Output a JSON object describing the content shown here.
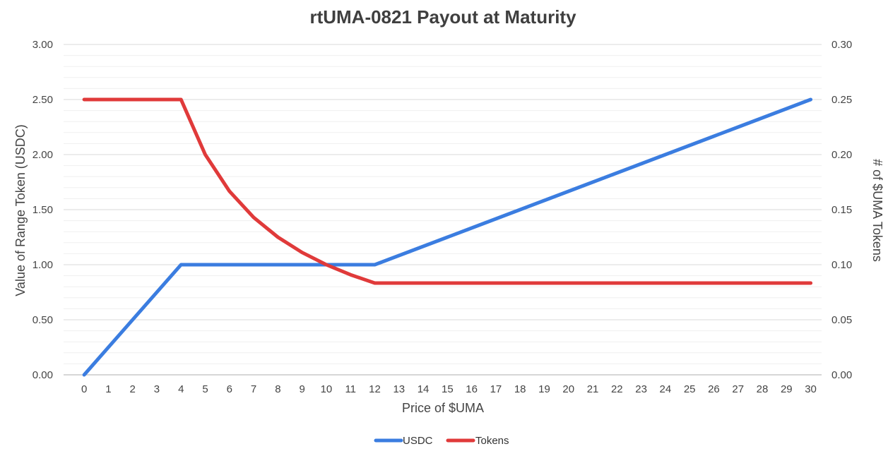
{
  "chart_data": {
    "type": "line",
    "title": "rtUMA-0821 Payout at Maturity",
    "xlabel": "Price of $UMA",
    "ylabel": "Value of Range Token (USDC)",
    "y2label": "# of $UMA Tokens",
    "x": [
      0,
      1,
      2,
      3,
      4,
      5,
      6,
      7,
      8,
      9,
      10,
      11,
      12,
      13,
      14,
      15,
      16,
      17,
      18,
      19,
      20,
      21,
      22,
      23,
      24,
      25,
      26,
      27,
      28,
      29,
      30
    ],
    "ylim": [
      0,
      3
    ],
    "y2lim": [
      0,
      0.3
    ],
    "yticks": [
      "0.00",
      "0.50",
      "1.00",
      "1.50",
      "2.00",
      "2.50",
      "3.00"
    ],
    "y2ticks": [
      "0.00",
      "0.05",
      "0.10",
      "0.15",
      "0.20",
      "0.25",
      "0.30"
    ],
    "grid": true,
    "legend_position": "bottom",
    "series": [
      {
        "name": "USDC",
        "axis": "left",
        "color": "#3b7de0",
        "values": [
          0,
          0.25,
          0.5,
          0.75,
          1,
          1,
          1,
          1,
          1,
          1,
          1,
          1,
          1,
          1.0833,
          1.1667,
          1.25,
          1.3333,
          1.4167,
          1.5,
          1.5833,
          1.6667,
          1.75,
          1.8333,
          1.9167,
          2,
          2.0833,
          2.1667,
          2.25,
          2.3333,
          2.4167,
          2.5
        ]
      },
      {
        "name": "Tokens",
        "axis": "right",
        "color": "#e03a3a",
        "values": [
          0.25,
          0.25,
          0.25,
          0.25,
          0.25,
          0.2,
          0.1667,
          0.1429,
          0.125,
          0.1111,
          0.1,
          0.0909,
          0.0833,
          0.0833,
          0.0833,
          0.0833,
          0.0833,
          0.0833,
          0.0833,
          0.0833,
          0.0833,
          0.0833,
          0.0833,
          0.0833,
          0.0833,
          0.0833,
          0.0833,
          0.0833,
          0.0833,
          0.0833,
          0.0833
        ]
      }
    ]
  }
}
